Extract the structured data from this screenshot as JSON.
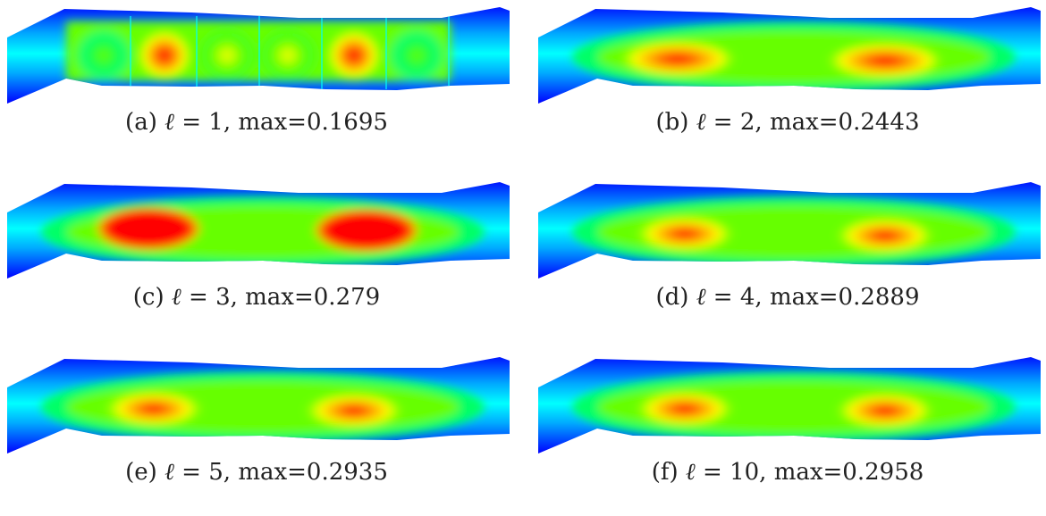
{
  "colormap": [
    "#0000ff",
    "#00a8ff",
    "#00ffff",
    "#00ff66",
    "#66ff00",
    "#ffff00",
    "#ff8800",
    "#ff0000"
  ],
  "panels": [
    {
      "label": "(a)",
      "ell_value": "1",
      "max_text": "max=0.1695",
      "max_value": 0.1695,
      "field": "cells"
    },
    {
      "label": "(b)",
      "ell_value": "2",
      "max_text": "max=0.2443",
      "max_value": 0.2443,
      "field": "two-lobes-elongated"
    },
    {
      "label": "(c)",
      "ell_value": "3",
      "max_text": "max=0.279",
      "max_value": 0.279,
      "field": "two-lobes-saturated"
    },
    {
      "label": "(d)",
      "ell_value": "4",
      "max_text": "max=0.2889",
      "max_value": 0.2889,
      "field": "two-lobes"
    },
    {
      "label": "(e)",
      "ell_value": "5",
      "max_text": "max=0.2935",
      "max_value": 0.2935,
      "field": "two-lobes"
    },
    {
      "label": "(f)",
      "ell_value": "10",
      "max_text": "max=0.2958",
      "max_value": 0.2958,
      "field": "two-lobes"
    }
  ]
}
